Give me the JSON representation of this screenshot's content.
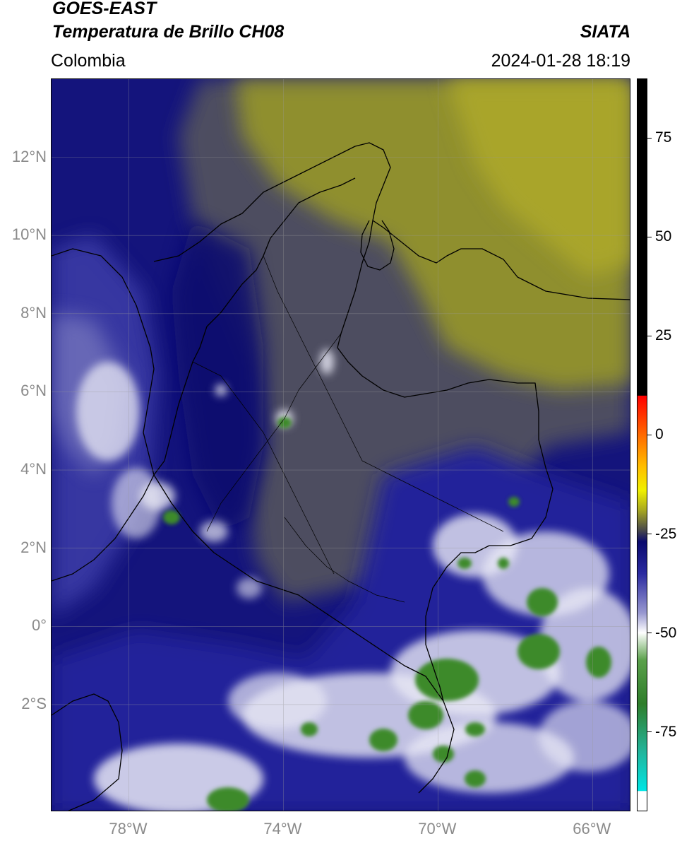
{
  "header": {
    "title_line1": "GOES-EAST",
    "title_line2": "Temperatura de Brillo CH08",
    "region": "Colombia",
    "source": "SIATA",
    "datetime": "2024-01-28 18:19"
  },
  "map": {
    "lon_range": [
      -80.0,
      -65.0
    ],
    "lat_range": [
      -4.75,
      14.0
    ],
    "lat_ticks": [
      {
        "value": 12,
        "label": "12°N"
      },
      {
        "value": 10,
        "label": "10°N"
      },
      {
        "value": 8,
        "label": "8°N"
      },
      {
        "value": 6,
        "label": "6°N"
      },
      {
        "value": 4,
        "label": "4°N"
      },
      {
        "value": 2,
        "label": "2°N"
      },
      {
        "value": 0,
        "label": "0°"
      },
      {
        "value": -2,
        "label": "2°S"
      }
    ],
    "lon_ticks": [
      {
        "value": -78,
        "label": "78°W"
      },
      {
        "value": -74,
        "label": "74°W"
      },
      {
        "value": -70,
        "label": "70°W"
      },
      {
        "value": -66,
        "label": "66°W"
      }
    ],
    "grid": true,
    "colors": {
      "dry_yellow": "#9a9a2a",
      "gray": "#505060",
      "dark_blue": "#0d0d78",
      "blue": "#28289a",
      "light_blue": "#8a8ac8",
      "white": "#f4f4fa",
      "green": "#3a8a2a"
    }
  },
  "colorbar": {
    "range": [
      -95,
      90
    ],
    "ticks": [
      {
        "value": 75,
        "label": "75"
      },
      {
        "value": 50,
        "label": "50"
      },
      {
        "value": 25,
        "label": "25"
      },
      {
        "value": 0,
        "label": "0"
      },
      {
        "value": -25,
        "label": "-25"
      },
      {
        "value": -50,
        "label": "-50"
      },
      {
        "value": -75,
        "label": "-75"
      }
    ],
    "stops": [
      {
        "value": 90,
        "color": "#000000"
      },
      {
        "value": 10,
        "color": "#000000"
      },
      {
        "value": 9.9,
        "color": "#ff0000"
      },
      {
        "value": 0,
        "color": "#ff6a00"
      },
      {
        "value": -8,
        "color": "#ffbe00"
      },
      {
        "value": -14,
        "color": "#f0f000"
      },
      {
        "value": -19,
        "color": "#a8a820"
      },
      {
        "value": -24,
        "color": "#4a4a4a"
      },
      {
        "value": -27,
        "color": "#0a0a6e"
      },
      {
        "value": -35,
        "color": "#2a2aa0"
      },
      {
        "value": -45,
        "color": "#9898d0"
      },
      {
        "value": -50,
        "color": "#ffffff"
      },
      {
        "value": -57,
        "color": "#5aa04a"
      },
      {
        "value": -68,
        "color": "#2e7d2a"
      },
      {
        "value": -80,
        "color": "#22b49a"
      },
      {
        "value": -90,
        "color": "#00e5e5"
      },
      {
        "value": -90.1,
        "color": "#ffffff"
      },
      {
        "value": -95,
        "color": "#ffffff"
      }
    ]
  }
}
